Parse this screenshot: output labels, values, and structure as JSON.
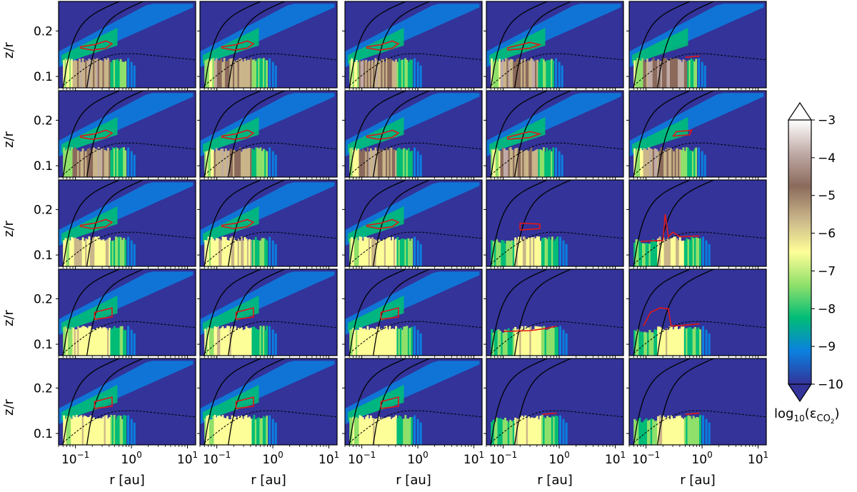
{
  "chart_data": {
    "type": "heatmap",
    "grid": {
      "rows": 5,
      "cols": 5
    },
    "xlabel": "r [au]",
    "ylabel": "z/r",
    "xscale": "log",
    "xlim": [
      0.05,
      14
    ],
    "ylim": [
      0.075,
      0.265
    ],
    "x_ticks": [
      {
        "value": 0.1,
        "base": "10",
        "exp": "−1"
      },
      {
        "value": 1,
        "base": "10",
        "exp": "0"
      },
      {
        "value": 10,
        "base": "10",
        "exp": "1"
      }
    ],
    "y_ticks": [
      {
        "value": 0.1,
        "label": "0.1"
      },
      {
        "value": 0.2,
        "label": "0.2"
      }
    ],
    "colorbar": {
      "min": -10,
      "max": -3,
      "extend": "both",
      "ticks": [
        {
          "value": -3,
          "label": "−3"
        },
        {
          "value": -4,
          "label": "−4"
        },
        {
          "value": -5,
          "label": "−5"
        },
        {
          "value": -6,
          "label": "−6"
        },
        {
          "value": -7,
          "label": "−7"
        },
        {
          "value": -8,
          "label": "−8"
        },
        {
          "value": -9,
          "label": "−9"
        },
        {
          "value": -10,
          "label": "−10"
        }
      ],
      "label_prefix": "log",
      "label_sub": "10",
      "label_mid": "(ε",
      "label_species": "CO",
      "label_species_sub": "2",
      "label_suffix": ")"
    },
    "colormap": [
      "#333399",
      "#0b80e0",
      "#00bc77",
      "#8fe06a",
      "#fefe98",
      "#c9b589",
      "#8b6a5c",
      "#c0aba7",
      "#ffffff"
    ]
  }
}
